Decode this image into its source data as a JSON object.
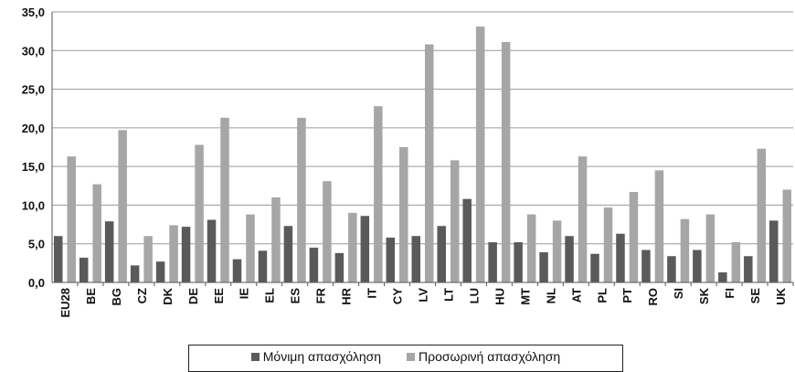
{
  "chart_data": {
    "type": "bar",
    "title": "",
    "xlabel": "",
    "ylabel": "",
    "ylim": [
      0,
      35
    ],
    "yticks": [
      "0,0",
      "5,0",
      "10,0",
      "15,0",
      "20,0",
      "25,0",
      "30,0",
      "35,0"
    ],
    "grid": true,
    "legend_position": "bottom",
    "categories": [
      "EU28",
      "BE",
      "BG",
      "CZ",
      "DK",
      "DE",
      "EE",
      "IE",
      "EL",
      "ES",
      "FR",
      "HR",
      "IT",
      "CY",
      "LV",
      "LT",
      "LU",
      "HU",
      "MT",
      "NL",
      "AT",
      "PL",
      "PT",
      "RO",
      "SI",
      "SK",
      "FI",
      "SE",
      "UK"
    ],
    "series": [
      {
        "name": "Μόνιμη απασχόληση",
        "color": "#5a5a5a",
        "values": [
          6.0,
          3.2,
          7.9,
          2.2,
          2.7,
          7.2,
          8.1,
          3.0,
          4.1,
          7.3,
          4.5,
          3.8,
          8.6,
          5.8,
          6.0,
          7.3,
          10.8,
          5.2,
          5.2,
          3.9,
          6.0,
          3.7,
          6.3,
          4.2,
          3.4,
          4.2,
          1.3,
          3.4,
          8.0
        ]
      },
      {
        "name": "Προσωρινή απασχόληση",
        "color": "#a6a6a6",
        "values": [
          16.3,
          12.7,
          19.7,
          6.0,
          7.4,
          17.8,
          21.3,
          8.8,
          11.0,
          21.3,
          13.1,
          9.0,
          22.8,
          17.5,
          30.8,
          15.8,
          33.1,
          31.1,
          8.8,
          8.0,
          16.3,
          9.7,
          11.7,
          14.5,
          8.2,
          8.8,
          5.2,
          17.3,
          12.0
        ]
      }
    ]
  }
}
